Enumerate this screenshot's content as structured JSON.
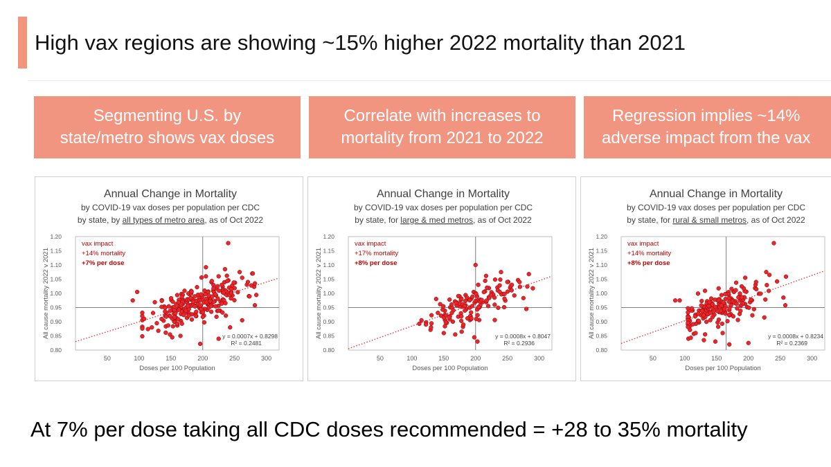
{
  "title": "High vax regions are showing ~15% higher 2022 mortality than 2021",
  "header_boxes": [
    {
      "line1": "Segmenting U.S. by",
      "line2": "state/metro shows vax doses"
    },
    {
      "line1": "Correlate with increases to",
      "line2": "mortality from 2021 to 2022"
    },
    {
      "line1": "Regression implies ~14%",
      "line2": "adverse impact from the vax"
    }
  ],
  "colors": {
    "accent": "#f29580",
    "point": "#e8262c",
    "annotation": "#c00000"
  },
  "chart_data": [
    {
      "type": "scatter",
      "title": "Annual Change in Mortality",
      "subtitle1": "by COVID-19 vax doses per population per CDC",
      "subtitle_prefix": "by state, by ",
      "subtitle_underlined": "all types of metro area",
      "subtitle_suffix": ", as of Oct 2022",
      "xlabel": "Doses per 100 Population",
      "ylabel": "All cause mortality 2022 v 2021",
      "xlim": [
        0,
        320
      ],
      "ylim": [
        0.8,
        1.2
      ],
      "xticks": [
        "50",
        "100",
        "150",
        "200",
        "250",
        "300"
      ],
      "yticks": [
        "0.80",
        "0.85",
        "0.90",
        "0.95",
        "1.00",
        "1.05",
        "1.10",
        "1.15",
        "1.20"
      ],
      "xticks_v": [
        50,
        100,
        150,
        200,
        250,
        300
      ],
      "yticks_v": [
        0.8,
        0.85,
        0.9,
        0.95,
        1.0,
        1.05,
        1.1,
        1.15,
        1.2
      ],
      "ref_x": 200,
      "ref_y": 0.95,
      "trend": {
        "slope": 0.0007,
        "intercept": 0.8298,
        "x0": 0,
        "x1": 320
      },
      "equation": "y = 0.0007x + 0.8298",
      "r2": "R² = 0.2481",
      "annotation": [
        "vax impact",
        "+14% mortality",
        "+7% per dose"
      ],
      "seed": 11,
      "n_points": 240,
      "points": [
        [
          90,
          0.975
        ],
        [
          97,
          1.005
        ],
        [
          240,
          1.177
        ],
        [
          282,
          1.035
        ],
        [
          205,
          1.092
        ],
        [
          235,
          1.085
        ],
        [
          258,
          1.075
        ],
        [
          205,
          1.06
        ],
        [
          225,
          1.06
        ],
        [
          238,
          1.062
        ],
        [
          262,
          1.055
        ],
        [
          271,
          1.04
        ],
        [
          196,
          0.822
        ],
        [
          225,
          0.84
        ],
        [
          165,
          0.85
        ],
        [
          152,
          0.845
        ],
        [
          120,
          0.88
        ],
        [
          108,
          0.91
        ],
        [
          243,
          0.88
        ],
        [
          262,
          0.905
        ],
        [
          282,
          0.958
        ],
        [
          245,
          1.015
        ],
        [
          230,
          1.03
        ]
      ]
    },
    {
      "type": "scatter",
      "title": "Annual Change in Mortality",
      "subtitle1": "by COVID-19 vax doses per population per CDC",
      "subtitle_prefix": "by state, for ",
      "subtitle_underlined": "large & med metros",
      "subtitle_suffix": ", as of Oct 2022",
      "xlabel": "Doses per 100 Population",
      "ylabel": "All cause mortality 2022 v 2021",
      "xlim": [
        0,
        320
      ],
      "ylim": [
        0.8,
        1.2
      ],
      "xticks": [
        "50",
        "100",
        "150",
        "200",
        "250",
        "300"
      ],
      "yticks": [
        "0.80",
        "0.85",
        "0.90",
        "0.95",
        "1.00",
        "1.05",
        "1.10",
        "1.15",
        "1.20"
      ],
      "xticks_v": [
        50,
        100,
        150,
        200,
        250,
        300
      ],
      "yticks_v": [
        0.8,
        0.85,
        0.9,
        0.95,
        1.0,
        1.05,
        1.1,
        1.15,
        1.2
      ],
      "ref_x": 200,
      "ref_y": 0.95,
      "trend": {
        "slope": 0.0008,
        "intercept": 0.8047,
        "x0": 0,
        "x1": 320
      },
      "equation": "y = 0.0008x + 0.8047",
      "r2": "R² = 0.2936",
      "annotation": [
        "vax impact",
        "+17% mortality",
        "+8% per dose"
      ],
      "seed": 29,
      "n_points": 130,
      "points": [
        [
          200,
          1.1
        ],
        [
          138,
          0.98
        ],
        [
          115,
          0.905
        ],
        [
          250,
          1.04
        ],
        [
          240,
          1.075
        ],
        [
          257,
          1.03
        ],
        [
          198,
          0.845
        ],
        [
          203,
          0.83
        ],
        [
          168,
          0.855
        ],
        [
          150,
          0.86
        ],
        [
          130,
          0.88
        ],
        [
          122,
          0.89
        ],
        [
          230,
          0.96
        ],
        [
          218,
          1.02
        ],
        [
          238,
          1.005
        ]
      ]
    },
    {
      "type": "scatter",
      "title": "Annual Change in Mortality",
      "subtitle1": "by COVID-19 vax doses per population per CDC",
      "subtitle_prefix": "by state, for ",
      "subtitle_underlined": "rural & small metros",
      "subtitle_suffix": ", as of Oct 2022",
      "xlabel": "Doses per 100 Population",
      "ylabel": "All cause mortality 2022 v 2021",
      "xlim": [
        0,
        320
      ],
      "ylim": [
        0.8,
        1.2
      ],
      "xticks": [
        "50",
        "100",
        "150",
        "200",
        "250",
        "300"
      ],
      "yticks": [
        "0.80",
        "0.85",
        "0.90",
        "0.95",
        "1.00",
        "1.05",
        "1.10",
        "1.15",
        "1.20"
      ],
      "xticks_v": [
        50,
        100,
        150,
        200,
        250,
        300
      ],
      "yticks_v": [
        0.8,
        0.85,
        0.9,
        0.95,
        1.0,
        1.05,
        1.1,
        1.15,
        1.2
      ],
      "ref_x": 165,
      "ref_y": 0.95,
      "trend": {
        "slope": 0.0008,
        "intercept": 0.8234,
        "x0": 0,
        "x1": 320
      },
      "equation": "y = 0.0008x + 0.8234",
      "r2": "R² = 0.2369",
      "annotation": [
        "vax impact",
        "+14% mortality",
        "+8% per dose"
      ],
      "seed": 53,
      "n_points": 180,
      "points": [
        [
          240,
          1.177
        ],
        [
          85,
          0.975
        ],
        [
          92,
          0.975
        ],
        [
          228,
          1.075
        ],
        [
          233,
          1.065
        ],
        [
          245,
          1.042
        ],
        [
          258,
          0.958
        ],
        [
          255,
          0.985
        ],
        [
          200,
          0.825
        ],
        [
          170,
          0.82
        ],
        [
          148,
          0.83
        ],
        [
          130,
          0.835
        ],
        [
          117,
          0.86
        ],
        [
          195,
          1.055
        ],
        [
          212,
          1.04
        ],
        [
          225,
          0.915
        ]
      ]
    }
  ],
  "bottom_text": "At 7% per dose taking all CDC doses recommended = +28 to 35% mortality"
}
